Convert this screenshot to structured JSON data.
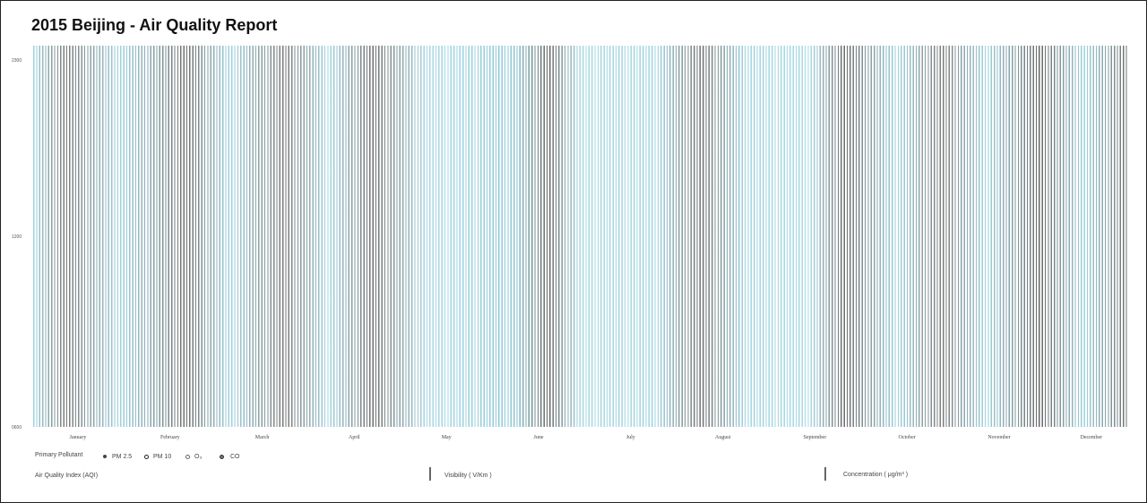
{
  "header": {
    "title": "2015 Beijing - Air Quality Report"
  },
  "y_labels": [
    "2300",
    "1200",
    "0600"
  ],
  "months": [
    "January",
    "February",
    "March",
    "April",
    "May",
    "June",
    "July",
    "August",
    "September",
    "October",
    "November",
    "December"
  ],
  "legend": {
    "title": "Primary Pollutant",
    "items": [
      "PM 2.5",
      "PM 10",
      "O₃",
      "CO"
    ]
  },
  "footer": [
    "Air Quality Index (AQI)",
    "Visibility ( V/Km )",
    "Concentration ( μg/m³ )"
  ]
}
